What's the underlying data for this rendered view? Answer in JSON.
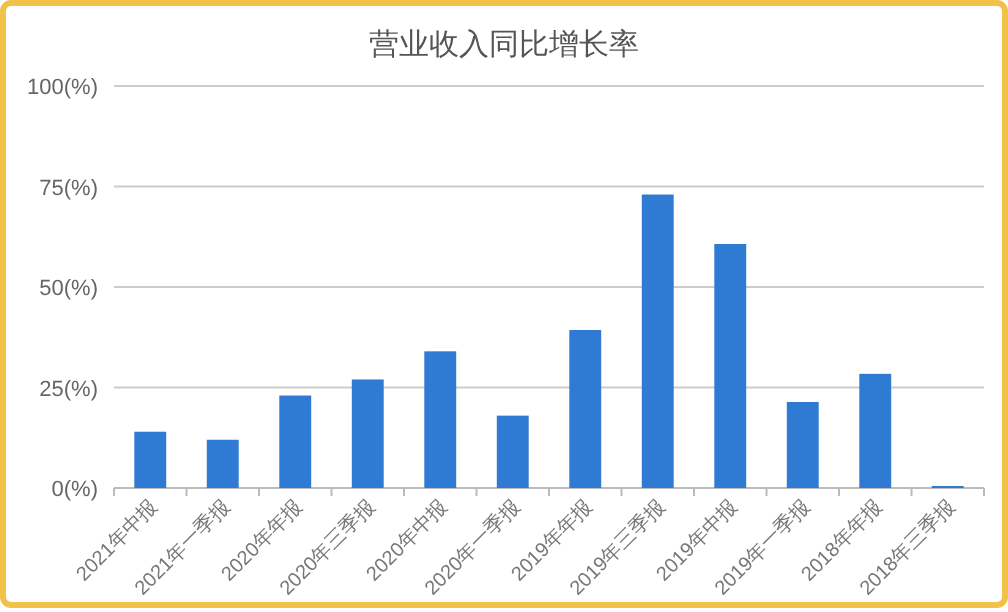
{
  "chart_data": {
    "type": "bar",
    "title": "营业收入同比增长率",
    "categories": [
      "2021年中报",
      "2021年一季报",
      "2020年年报",
      "2020年三季报",
      "2020年中报",
      "2020年一季报",
      "2019年年报",
      "2019年三季报",
      "2019年中报",
      "2019年一季报",
      "2018年年报",
      "2018年三季报"
    ],
    "values": [
      14,
      12,
      23,
      27,
      34,
      18,
      39.3,
      73,
      60.7,
      21.4,
      28.4,
      0.5
    ],
    "color": "#2f7bd4",
    "ylim": [
      0,
      100
    ],
    "yticks": [
      {
        "value": 0,
        "label": "0(%)"
      },
      {
        "value": 25,
        "label": "25(%)"
      },
      {
        "value": 50,
        "label": "50(%)"
      },
      {
        "value": 75,
        "label": "75(%)"
      },
      {
        "value": 100,
        "label": "100(%)"
      }
    ],
    "grid": "y"
  }
}
